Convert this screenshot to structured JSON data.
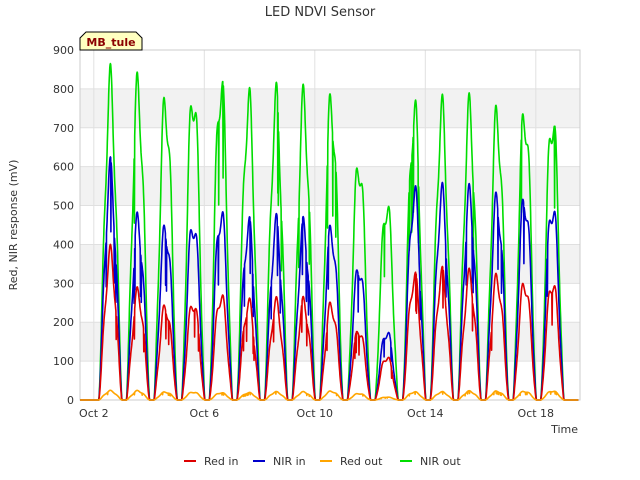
{
  "chart_data": {
    "type": "line",
    "title": "LED NDVI Sensor",
    "xlabel": "Time",
    "ylabel": "Red, NIR response (mV)",
    "ylim": [
      0,
      900
    ],
    "yticks": [
      0,
      100,
      200,
      300,
      400,
      500,
      600,
      700,
      800,
      900
    ],
    "xlim_days": [
      1.5,
      19.6
    ],
    "xtick_labels": [
      "Oct 2",
      "Oct 6",
      "Oct 10",
      "Oct 14",
      "Oct 18"
    ],
    "xtick_days": [
      2,
      6,
      10,
      14,
      18
    ],
    "site_label": "MB_tule",
    "grid": true,
    "legend_position": "bottom",
    "series": [
      {
        "name": "Red in",
        "color": "#dd0000",
        "days": [
          2.6,
          3.6,
          4.6,
          5.6,
          6.6,
          7.6,
          8.6,
          9.6,
          10.6,
          11.6,
          12.6,
          13.6,
          14.6,
          15.6,
          16.6,
          17.6,
          18.6
        ],
        "peaks": [
          400,
          295,
          258,
          272,
          290,
          268,
          266,
          268,
          262,
          195,
          120,
          340,
          345,
          340,
          335,
          325,
          328
        ]
      },
      {
        "name": "NIR in",
        "color": "#0000cc",
        "days": [
          2.6,
          3.6,
          4.6,
          5.6,
          6.6,
          7.6,
          8.6,
          9.6,
          10.6,
          11.6,
          12.6,
          13.6,
          14.6,
          15.6,
          16.6,
          17.6,
          18.6
        ],
        "peaks": [
          625,
          490,
          475,
          495,
          520,
          482,
          480,
          475,
          468,
          370,
          190,
          570,
          562,
          558,
          550,
          560,
          542
        ]
      },
      {
        "name": "Red out",
        "color": "#ffa500",
        "days": [
          2.6,
          3.6,
          4.6,
          5.6,
          6.6,
          7.6,
          8.6,
          9.6,
          10.6,
          11.6,
          12.6,
          13.6,
          14.6,
          15.6,
          16.6,
          17.6,
          18.6
        ],
        "peaks": [
          25,
          25,
          22,
          22,
          20,
          20,
          22,
          22,
          24,
          18,
          8,
          22,
          22,
          24,
          24,
          24,
          25
        ]
      },
      {
        "name": "NIR out",
        "color": "#00dd00",
        "days": [
          2.6,
          3.6,
          4.6,
          5.6,
          6.6,
          7.6,
          8.6,
          9.6,
          10.6,
          11.6,
          12.6,
          13.6,
          14.6,
          15.6,
          16.6,
          17.6,
          18.6
        ],
        "peaks": [
          865,
          855,
          822,
          855,
          880,
          822,
          818,
          818,
          820,
          660,
          545,
          798,
          790,
          792,
          780,
          798,
          788
        ]
      }
    ]
  }
}
